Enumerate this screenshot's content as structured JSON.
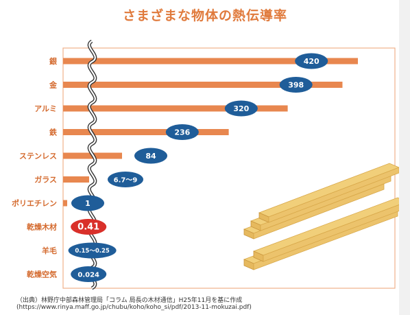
{
  "title": "さまざまな物体の熱伝導率",
  "colors": {
    "title": "#e07a3c",
    "bar": "#e8874f",
    "frame": "#f0b08a",
    "badge": "#1f5d99",
    "highlight_badge": "#d9302a",
    "label": "#d46a2e",
    "wavy_line": "#333333",
    "wood": "#f1cf7a"
  },
  "chart_data": {
    "type": "bar",
    "orientation": "horizontal",
    "categories": [
      "銀",
      "金",
      "アルミ",
      "鉄",
      "ステンレス",
      "ガラス",
      "ポリエチレン",
      "乾燥木材",
      "羊毛",
      "乾燥空気"
    ],
    "values": [
      420,
      398,
      320,
      236,
      84,
      8,
      1,
      0.41,
      0.2,
      0.024
    ],
    "value_labels": [
      "420",
      "398",
      "320",
      "236",
      "84",
      "6.7～9",
      "1",
      "0.41",
      "0.15～0.25",
      "0.024"
    ],
    "highlight": "乾燥木材",
    "axis_break": true,
    "title": "さまざまな物体の熱伝導率"
  },
  "footnote": {
    "line1": "（出典）林野庁中部森林管理局「コラム 局長の木材通信」H25年11月を基に作成",
    "line2": "(https://www.rinya.maff.go.jp/chubu/koho/koho_si/pdf/2013-11-mokuzai.pdf)"
  }
}
